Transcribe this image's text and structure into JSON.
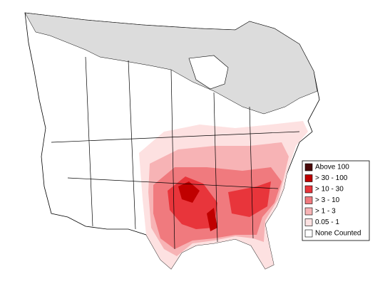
{
  "legend": {
    "items": [
      {
        "label": "Above 100",
        "color": "#4a0808"
      },
      {
        "label": "> 30 - 100",
        "color": "#c00000"
      },
      {
        "label": "> 10 - 30",
        "color": "#e8353b"
      },
      {
        "label": "> 3 - 10",
        "color": "#f07a7e"
      },
      {
        "label": "> 1 - 3",
        "color": "#f7b3b5"
      },
      {
        "label": "0.05 - 1",
        "color": "#fde1e1"
      },
      {
        "label": "None Counted",
        "color": "#ffffff"
      }
    ]
  }
}
